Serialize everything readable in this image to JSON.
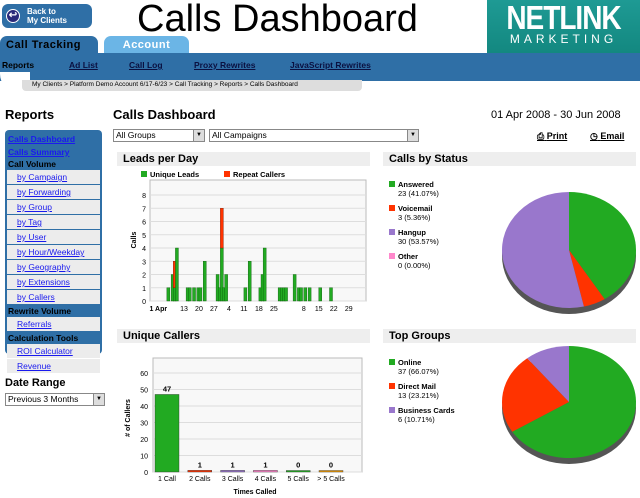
{
  "header": {
    "back_label_1": "Back to",
    "back_label_2": "My Clients",
    "title": "Calls Dashboard",
    "logo_1": "NETLINK",
    "logo_2": "MARKETING"
  },
  "tabs": [
    {
      "label": "Call Tracking",
      "active": true
    },
    {
      "label": "Account",
      "active": false
    }
  ],
  "nav": {
    "current": "Reports",
    "links": [
      "Ad List",
      "Call Log",
      "Proxy Rewrites",
      "JavaScript Rewrites"
    ]
  },
  "breadcrumb": "My Clients > Platform Demo Account 6/17-6/23 > Call Tracking > Reports > Calls Dashboard",
  "sidebar": {
    "title": "Reports",
    "top_links": [
      "Calls Dashboard",
      "Calls Summary"
    ],
    "sections": [
      {
        "heading": "Call Volume",
        "items": [
          "by Campaign",
          "by Forwarding",
          "by Group",
          "by Tag",
          "by User",
          "by Hour/Weekday",
          "by Geography",
          "by Extensions",
          "by Callers"
        ]
      },
      {
        "heading": "Rewrite Volume",
        "items": [
          "Referrals"
        ]
      },
      {
        "heading": "Calculation Tools",
        "items": [
          "ROI Calculator",
          "Revenue"
        ]
      }
    ],
    "date_range_label": "Date Range",
    "date_range_value": "Previous 3 Months"
  },
  "main": {
    "title": "Calls Dashboard",
    "date_range": "01 Apr 2008 - 30 Jun 2008",
    "group_filter": "All Groups",
    "campaign_filter": "All Campaigns",
    "print_label": "Print",
    "email_label": "Email"
  },
  "colors": {
    "brand_blue": "#2f6fa6",
    "unique": "#22aa22",
    "repeat": "#ff3300",
    "hangup": "#9977cc",
    "other": "#ff88cc",
    "orange": "#ee9900"
  },
  "chart_data": [
    {
      "type": "bar",
      "title": "Leads per Day",
      "stacked": true,
      "ylabel": "Calls",
      "ylim": [
        0,
        8.5
      ],
      "xticks": [
        "1 Apr",
        "13",
        "20",
        "27",
        "4",
        "11",
        "18",
        "25",
        "8",
        "15",
        "22",
        "29"
      ],
      "legend": [
        "Unique Leads",
        "Repeat Callers"
      ],
      "x": [
        "2008-04-05",
        "2008-04-07",
        "2008-04-08",
        "2008-04-09",
        "2008-04-14",
        "2008-04-15",
        "2008-04-17",
        "2008-04-19",
        "2008-04-20",
        "2008-04-22",
        "2008-04-28",
        "2008-04-29",
        "2008-04-30",
        "2008-05-01",
        "2008-05-02",
        "2008-05-11",
        "2008-05-13",
        "2008-05-18",
        "2008-05-19",
        "2008-05-20",
        "2008-05-27",
        "2008-05-28",
        "2008-05-29",
        "2008-05-30",
        "2008-06-03",
        "2008-06-05",
        "2008-06-06",
        "2008-06-08",
        "2008-06-10",
        "2008-06-15",
        "2008-06-20"
      ],
      "series": [
        {
          "name": "Unique Leads",
          "values": [
            1,
            2,
            1,
            4,
            1,
            1,
            1,
            1,
            1,
            3,
            2,
            1,
            4,
            1,
            2,
            1,
            3,
            1,
            2,
            4,
            1,
            1,
            1,
            1,
            2,
            1,
            1,
            1,
            1,
            1,
            1
          ]
        },
        {
          "name": "Repeat Callers",
          "values": [
            0,
            0,
            2,
            0,
            0,
            0,
            0,
            0,
            0,
            0,
            0,
            0,
            3,
            0,
            0,
            0,
            0,
            0,
            0,
            0,
            0,
            0,
            0,
            0,
            0,
            0,
            0,
            0,
            0,
            0,
            0
          ]
        }
      ]
    },
    {
      "type": "pie",
      "title": "Calls by Status",
      "slices": [
        {
          "label": "Answered",
          "value": 23,
          "pct": "41.07%"
        },
        {
          "label": "Voicemail",
          "value": 3,
          "pct": "5.36%"
        },
        {
          "label": "Hangup",
          "value": 30,
          "pct": "53.57%"
        },
        {
          "label": "Other",
          "value": 0,
          "pct": "0.00%"
        }
      ]
    },
    {
      "type": "bar",
      "title": "Unique Callers",
      "xlabel": "Times Called",
      "ylabel": "# of Callers",
      "ylim": [
        0,
        65
      ],
      "yticks": [
        0,
        10,
        20,
        30,
        40,
        50,
        60
      ],
      "categories": [
        "1 Call",
        "2 Calls",
        "3 Calls",
        "4 Calls",
        "5 Calls",
        "> 5 Calls"
      ],
      "values": [
        47,
        1,
        1,
        1,
        0,
        0
      ]
    },
    {
      "type": "pie",
      "title": "Top Groups",
      "slices": [
        {
          "label": "Online",
          "value": 37,
          "pct": "66.07%"
        },
        {
          "label": "Direct Mail",
          "value": 13,
          "pct": "23.21%"
        },
        {
          "label": "Business Cards",
          "value": 6,
          "pct": "10.71%"
        }
      ]
    }
  ]
}
